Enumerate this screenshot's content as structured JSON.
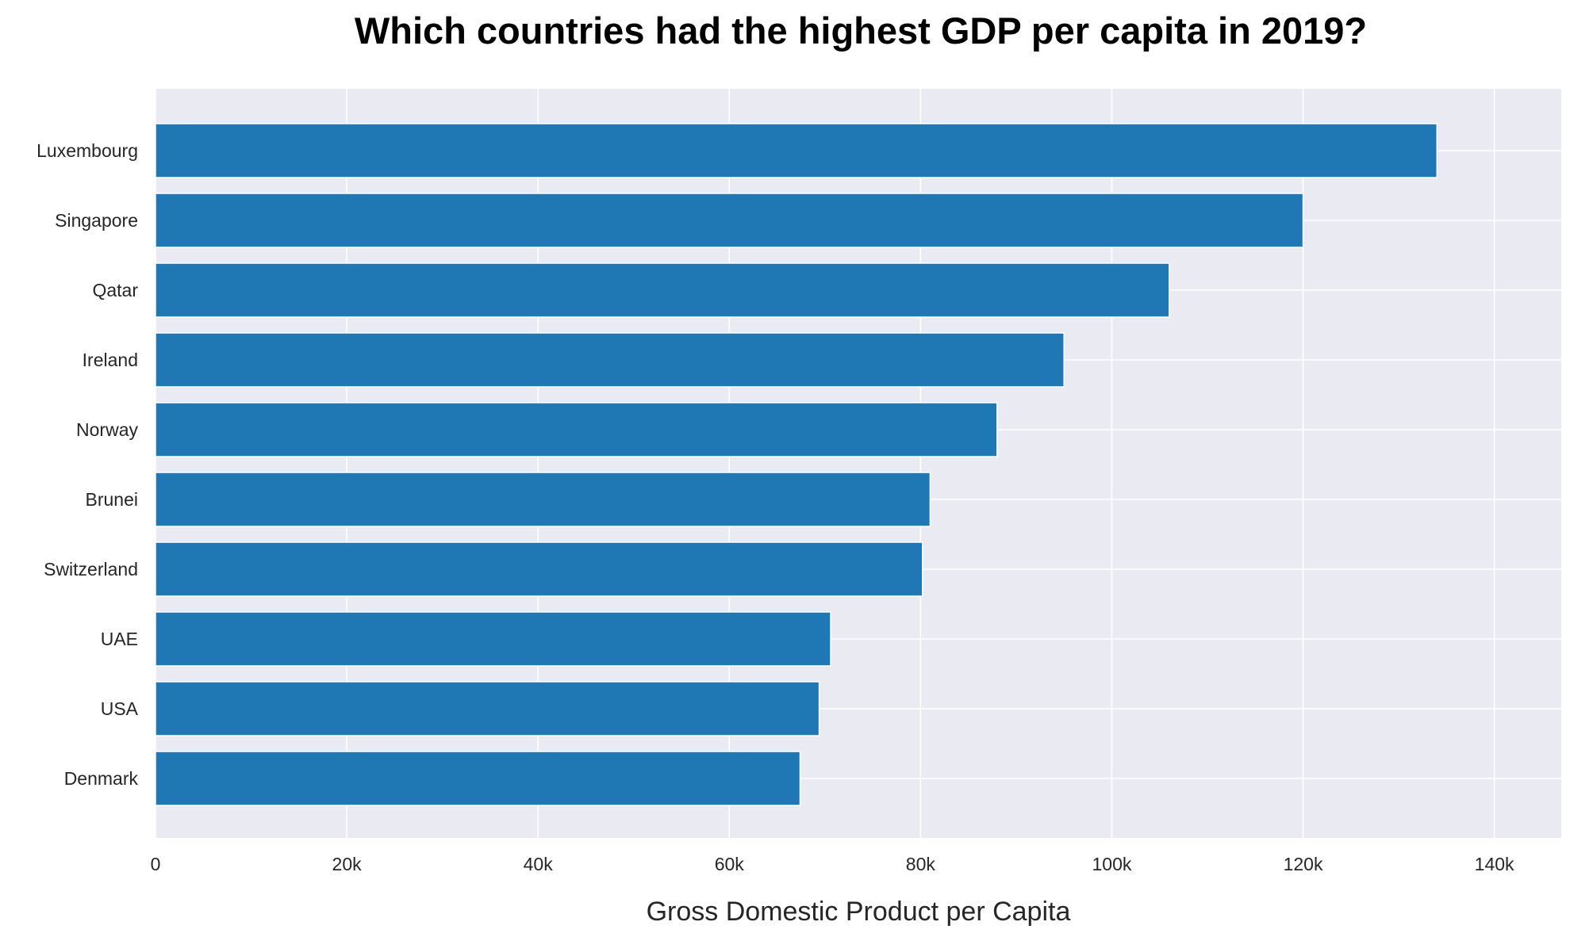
{
  "chart_data": {
    "type": "bar",
    "orientation": "horizontal",
    "title": "Which countries had the highest GDP per capita in 2019?",
    "xlabel": "Gross Domestic Product per Capita",
    "ylabel": "",
    "categories": [
      "Luxembourg",
      "Singapore",
      "Qatar",
      "Ireland",
      "Norway",
      "Brunei",
      "Switzerland",
      "UAE",
      "USA",
      "Denmark"
    ],
    "values": [
      134000,
      120000,
      106000,
      95000,
      88000,
      81000,
      80200,
      70600,
      69400,
      67400
    ],
    "xlim": [
      0,
      147000
    ],
    "xticks": [
      0,
      20000,
      40000,
      60000,
      80000,
      100000,
      120000,
      140000
    ],
    "xtick_labels": [
      "0",
      "20k",
      "40k",
      "60k",
      "80k",
      "100k",
      "120k",
      "140k"
    ],
    "grid": true,
    "bar_color": "#1f77b4",
    "background_color": "#eaeaf2",
    "grid_color": "#ffffff"
  }
}
